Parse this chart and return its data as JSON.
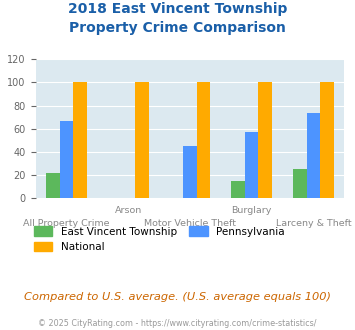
{
  "title_line1": "2018 East Vincent Township",
  "title_line2": "Property Crime Comparison",
  "categories": [
    "All Property Crime",
    "Arson",
    "Motor Vehicle Theft",
    "Burglary",
    "Larceny & Theft"
  ],
  "top_labels": [
    "",
    "Arson",
    "",
    "Burglary",
    ""
  ],
  "bottom_labels": [
    "All Property Crime",
    "",
    "Motor Vehicle Theft",
    "",
    "Larceny & Theft"
  ],
  "east_vincent": [
    22,
    0,
    0,
    15,
    25
  ],
  "pennsylvania": [
    67,
    0,
    45,
    57,
    74
  ],
  "national": [
    100,
    100,
    100,
    100,
    100
  ],
  "ylim": [
    0,
    120
  ],
  "yticks": [
    0,
    20,
    40,
    60,
    80,
    100,
    120
  ],
  "color_east_vincent": "#5cb85c",
  "color_pennsylvania": "#4d94ff",
  "color_national": "#ffaa00",
  "title_color": "#1a5fa8",
  "plot_bg_color": "#dce9f0",
  "footer_text": "Compared to U.S. average. (U.S. average equals 100)",
  "copyright_text": "© 2025 CityRating.com - https://www.cityrating.com/crime-statistics/",
  "bar_width": 0.22
}
